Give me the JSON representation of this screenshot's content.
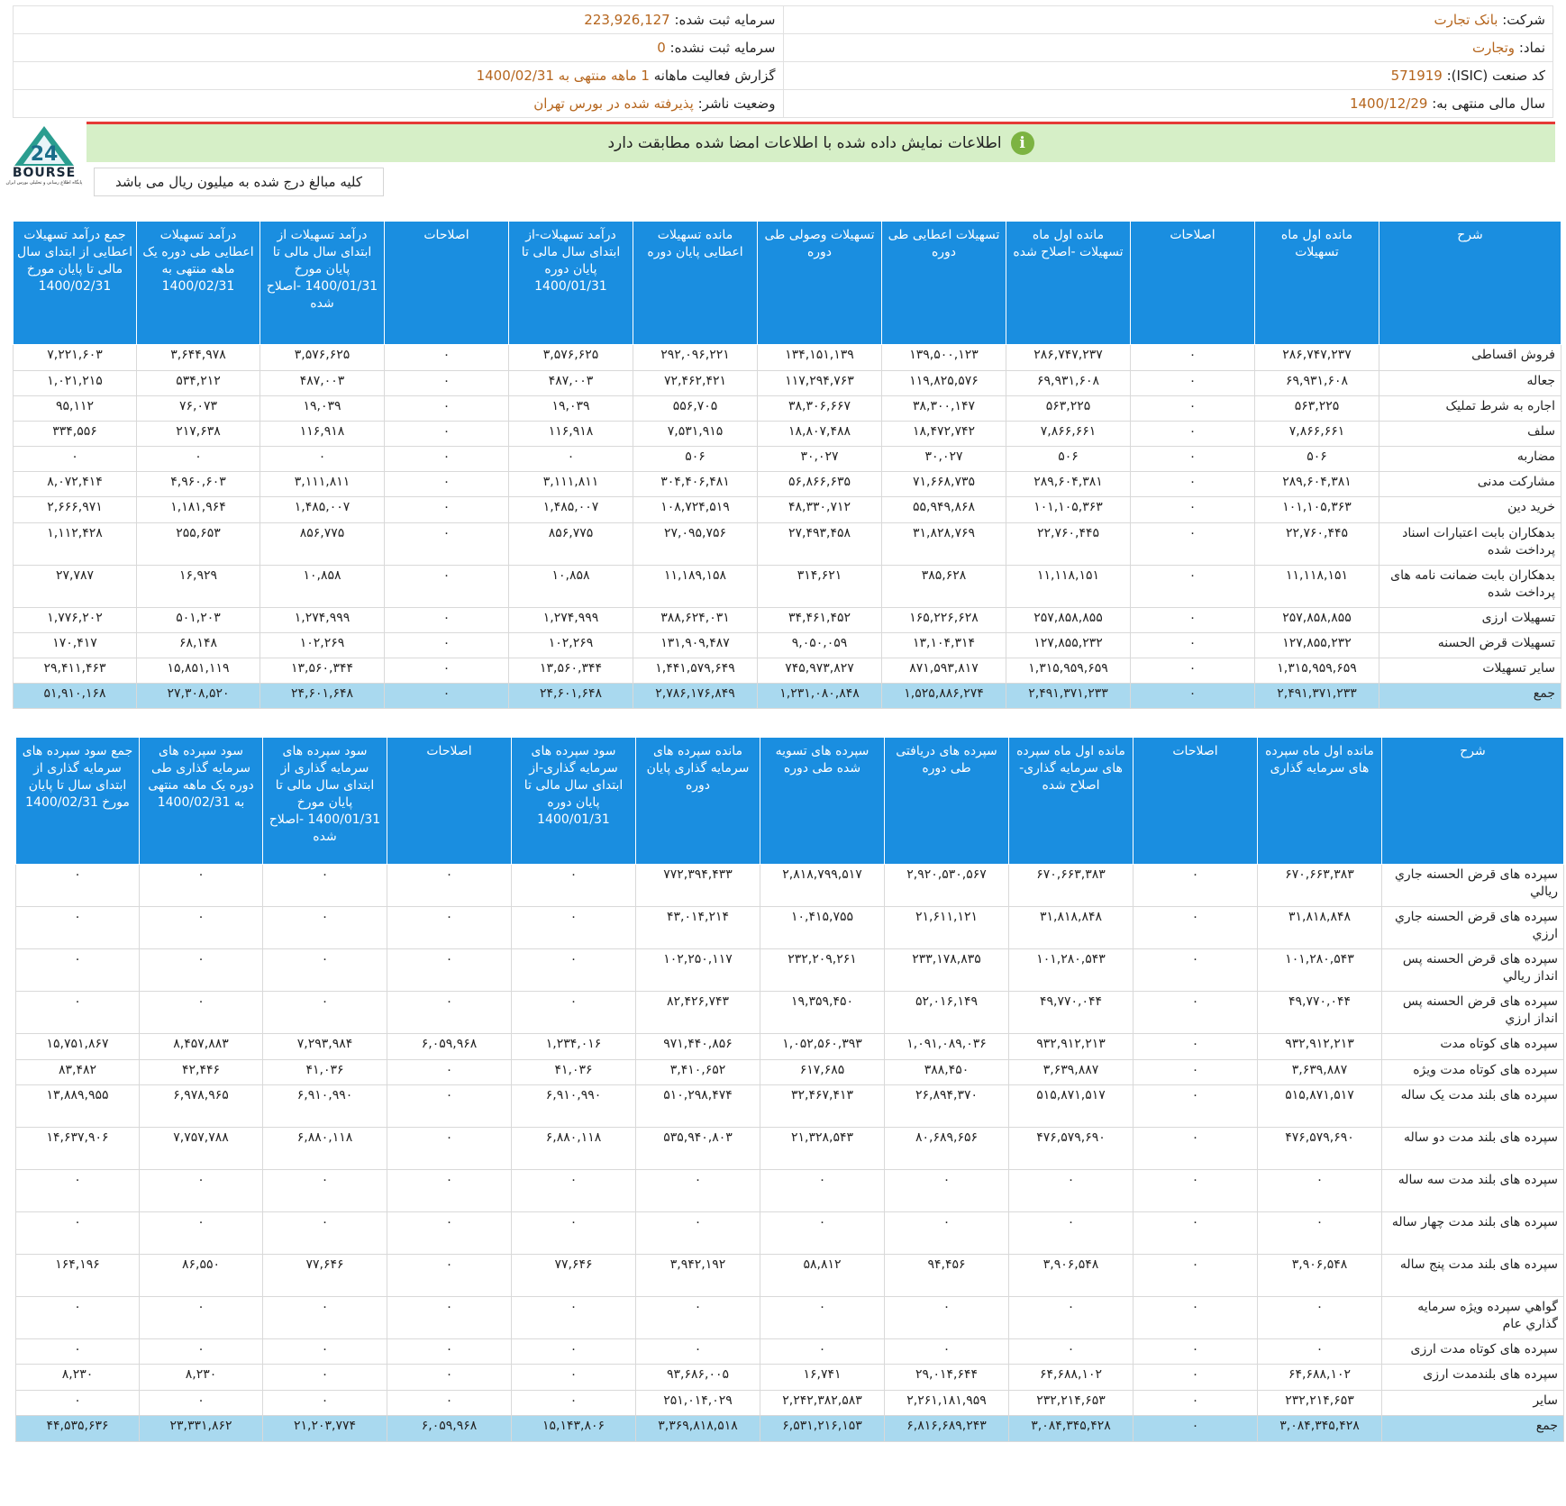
{
  "header": {
    "company_label": "شرکت:",
    "company": "بانک تجارت",
    "capital_label": "سرمایه ثبت شده:",
    "capital": "223,926,127",
    "symbol_label": "نماد:",
    "symbol": "وتجارت",
    "unreg_label": "سرمایه ثبت نشده:",
    "unreg": "0",
    "isic_label": "کد صنعت (ISIC):",
    "isic": "571919",
    "report_label": "گزارش فعالیت ماهانه",
    "report_value": "1 ماهه منتهی به 1400/02/31",
    "fy_label": "سال مالی منتهی به:",
    "fy": "1400/12/29",
    "status_label": "وضعیت ناشر:",
    "status": "پذیرفته شده در بورس تهران"
  },
  "banner": {
    "text": "اطلاعات نمایش داده شده با اطلاعات امضا شده مطابقت دارد",
    "icon": "info-icon"
  },
  "logo": {
    "text": "BOURSE",
    "sub": "پایگاه اطلاع رسانی و تحلیلی بورس ایران"
  },
  "note": "کلیه مبالغ درج شده به میلیون ریال می باشد",
  "loans": {
    "headers": [
      "شرح",
      "مانده اول ماه تسهیلات",
      "اصلاحات",
      "مانده اول ماه تسهیلات -اصلاح شده",
      "تسهیلات اعطایی طی دوره",
      "تسهیلات وصولی طی دوره",
      "مانده تسهیلات اعطایی پایان دوره",
      "درآمد تسهیلات-از ابتدای سال مالی تا پایان دوره 1400/01/31",
      "اصلاحات",
      "درآمد تسهیلات از ابتدای سال مالی تا پایان مورخ 1400/01/31 -اصلاح شده",
      "درآمد تسهیلات اعطایی طی دوره یک ماهه منتهی به 1400/02/31",
      "جمع درآمد تسهیلات اعطایی از ابتدای سال مالی تا پایان مورخ 1400/02/31"
    ],
    "rows": [
      [
        "فروش اقساطی",
        "۲۸۶,۷۴۷,۲۳۷",
        "۰",
        "۲۸۶,۷۴۷,۲۳۷",
        "۱۳۹,۵۰۰,۱۲۳",
        "۱۳۴,۱۵۱,۱۳۹",
        "۲۹۲,۰۹۶,۲۲۱",
        "۳,۵۷۶,۶۲۵",
        "۰",
        "۳,۵۷۶,۶۲۵",
        "۳,۶۴۴,۹۷۸",
        "۷,۲۲۱,۶۰۳"
      ],
      [
        "جعاله",
        "۶۹,۹۳۱,۶۰۸",
        "۰",
        "۶۹,۹۳۱,۶۰۸",
        "۱۱۹,۸۲۵,۵۷۶",
        "۱۱۷,۲۹۴,۷۶۳",
        "۷۲,۴۶۲,۴۲۱",
        "۴۸۷,۰۰۳",
        "۰",
        "۴۸۷,۰۰۳",
        "۵۳۴,۲۱۲",
        "۱,۰۲۱,۲۱۵"
      ],
      [
        "اجاره به شرط تملیک",
        "۵۶۳,۲۲۵",
        "۰",
        "۵۶۳,۲۲۵",
        "۳۸,۳۰۰,۱۴۷",
        "۳۸,۳۰۶,۶۶۷",
        "۵۵۶,۷۰۵",
        "۱۹,۰۳۹",
        "۰",
        "۱۹,۰۳۹",
        "۷۶,۰۷۳",
        "۹۵,۱۱۲"
      ],
      [
        "سلف",
        "۷,۸۶۶,۶۶۱",
        "۰",
        "۷,۸۶۶,۶۶۱",
        "۱۸,۴۷۲,۷۴۲",
        "۱۸,۸۰۷,۴۸۸",
        "۷,۵۳۱,۹۱۵",
        "۱۱۶,۹۱۸",
        "۰",
        "۱۱۶,۹۱۸",
        "۲۱۷,۶۳۸",
        "۳۳۴,۵۵۶"
      ],
      [
        "مضاربه",
        "۵۰۶",
        "۰",
        "۵۰۶",
        "۳۰,۰۲۷",
        "۳۰,۰۲۷",
        "۵۰۶",
        "۰",
        "۰",
        "۰",
        "۰",
        "۰"
      ],
      [
        "مشارکت مدنی",
        "۲۸۹,۶۰۴,۳۸۱",
        "۰",
        "۲۸۹,۶۰۴,۳۸۱",
        "۷۱,۶۶۸,۷۳۵",
        "۵۶,۸۶۶,۶۳۵",
        "۳۰۴,۴۰۶,۴۸۱",
        "۳,۱۱۱,۸۱۱",
        "۰",
        "۳,۱۱۱,۸۱۱",
        "۴,۹۶۰,۶۰۳",
        "۸,۰۷۲,۴۱۴"
      ],
      [
        "خرید دین",
        "۱۰۱,۱۰۵,۳۶۳",
        "۰",
        "۱۰۱,۱۰۵,۳۶۳",
        "۵۵,۹۴۹,۸۶۸",
        "۴۸,۳۳۰,۷۱۲",
        "۱۰۸,۷۲۴,۵۱۹",
        "۱,۴۸۵,۰۰۷",
        "۰",
        "۱,۴۸۵,۰۰۷",
        "۱,۱۸۱,۹۶۴",
        "۲,۶۶۶,۹۷۱"
      ],
      [
        "بدهکاران بابت اعتبارات اسناد پرداخت شده",
        "۲۲,۷۶۰,۴۴۵",
        "۰",
        "۲۲,۷۶۰,۴۴۵",
        "۳۱,۸۲۸,۷۶۹",
        "۲۷,۴۹۳,۴۵۸",
        "۲۷,۰۹۵,۷۵۶",
        "۸۵۶,۷۷۵",
        "۰",
        "۸۵۶,۷۷۵",
        "۲۵۵,۶۵۳",
        "۱,۱۱۲,۴۲۸"
      ],
      [
        "بدهکاران بابت ضمانت نامه های پرداخت شده",
        "۱۱,۱۱۸,۱۵۱",
        "۰",
        "۱۱,۱۱۸,۱۵۱",
        "۳۸۵,۶۲۸",
        "۳۱۴,۶۲۱",
        "۱۱,۱۸۹,۱۵۸",
        "۱۰,۸۵۸",
        "۰",
        "۱۰,۸۵۸",
        "۱۶,۹۲۹",
        "۲۷,۷۸۷"
      ],
      [
        "تسهیلات ارزی",
        "۲۵۷,۸۵۸,۸۵۵",
        "۰",
        "۲۵۷,۸۵۸,۸۵۵",
        "۱۶۵,۲۲۶,۶۲۸",
        "۳۴,۴۶۱,۴۵۲",
        "۳۸۸,۶۲۴,۰۳۱",
        "۱,۲۷۴,۹۹۹",
        "۰",
        "۱,۲۷۴,۹۹۹",
        "۵۰۱,۲۰۳",
        "۱,۷۷۶,۲۰۲"
      ],
      [
        "تسهیلات قرض الحسنه",
        "۱۲۷,۸۵۵,۲۳۲",
        "۰",
        "۱۲۷,۸۵۵,۲۳۲",
        "۱۳,۱۰۴,۳۱۴",
        "۹,۰۵۰,۰۵۹",
        "۱۳۱,۹۰۹,۴۸۷",
        "۱۰۲,۲۶۹",
        "۰",
        "۱۰۲,۲۶۹",
        "۶۸,۱۴۸",
        "۱۷۰,۴۱۷"
      ],
      [
        "سایر تسهیلات",
        "۱,۳۱۵,۹۵۹,۶۵۹",
        "۰",
        "۱,۳۱۵,۹۵۹,۶۵۹",
        "۸۷۱,۵۹۳,۸۱۷",
        "۷۴۵,۹۷۳,۸۲۷",
        "۱,۴۴۱,۵۷۹,۶۴۹",
        "۱۳,۵۶۰,۳۴۴",
        "۰",
        "۱۳,۵۶۰,۳۴۴",
        "۱۵,۸۵۱,۱۱۹",
        "۲۹,۴۱۱,۴۶۳"
      ]
    ],
    "total": [
      "جمع",
      "۲,۴۹۱,۳۷۱,۲۳۳",
      "۰",
      "۲,۴۹۱,۳۷۱,۲۳۳",
      "۱,۵۲۵,۸۸۶,۲۷۴",
      "۱,۲۳۱,۰۸۰,۸۴۸",
      "۲,۷۸۶,۱۷۶,۸۴۹",
      "۲۴,۶۰۱,۶۴۸",
      "۰",
      "۲۴,۶۰۱,۶۴۸",
      "۲۷,۳۰۸,۵۲۰",
      "۵۱,۹۱۰,۱۶۸"
    ]
  },
  "deposits": {
    "headers": [
      "شرح",
      "مانده اول ماه سپرده های سرمایه گذاری",
      "اصلاحات",
      "مانده اول ماه سپرده های سرمایه گذاری- اصلاح شده",
      "سپرده های دریافتی طی دوره",
      "سپرده های تسویه شده طی دوره",
      "مانده سپرده های سرمایه گذاری پایان دوره",
      "سود سپرده های سرمایه گذاری-از ابتدای سال مالی تا پایان دوره 1400/01/31",
      "اصلاحات",
      "سود سپرده های سرمایه گذاری از ابتدای سال مالی تا پایان مورخ 1400/01/31 -اصلاح شده",
      "سود سپرده های سرمایه گذاری طی دوره یک ماهه منتهی به 1400/02/31",
      "جمع سود سپرده های سرمایه گذاری از ابتدای سال تا پایان مورخ 1400/02/31"
    ],
    "rows": [
      [
        "سپرده های قرض الحسنه جاري ريالي",
        "۶۷۰,۶۶۳,۳۸۳",
        "۰",
        "۶۷۰,۶۶۳,۳۸۳",
        "۲,۹۲۰,۵۳۰,۵۶۷",
        "۲,۸۱۸,۷۹۹,۵۱۷",
        "۷۷۲,۳۹۴,۴۳۳",
        "۰",
        "۰",
        "۰",
        "۰",
        "۰"
      ],
      [
        "سپرده های قرض الحسنه جاري ارزي",
        "۳۱,۸۱۸,۸۴۸",
        "۰",
        "۳۱,۸۱۸,۸۴۸",
        "۲۱,۶۱۱,۱۲۱",
        "۱۰,۴۱۵,۷۵۵",
        "۴۳,۰۱۴,۲۱۴",
        "۰",
        "۰",
        "۰",
        "۰",
        "۰"
      ],
      [
        "سپرده های قرض الحسنه پس انداز ريالي",
        "۱۰۱,۲۸۰,۵۴۳",
        "۰",
        "۱۰۱,۲۸۰,۵۴۳",
        "۲۳۳,۱۷۸,۸۳۵",
        "۲۳۲,۲۰۹,۲۶۱",
        "۱۰۲,۲۵۰,۱۱۷",
        "۰",
        "۰",
        "۰",
        "۰",
        "۰"
      ],
      [
        "سپرده های قرض الحسنه پس انداز ارزي",
        "۴۹,۷۷۰,۰۴۴",
        "۰",
        "۴۹,۷۷۰,۰۴۴",
        "۵۲,۰۱۶,۱۴۹",
        "۱۹,۳۵۹,۴۵۰",
        "۸۲,۴۲۶,۷۴۳",
        "۰",
        "۰",
        "۰",
        "۰",
        "۰"
      ],
      [
        "سپرده های کوتاه مدت",
        "۹۳۲,۹۱۲,۲۱۳",
        "۰",
        "۹۳۲,۹۱۲,۲۱۳",
        "۱,۰۹۱,۰۸۹,۰۳۶",
        "۱,۰۵۲,۵۶۰,۳۹۳",
        "۹۷۱,۴۴۰,۸۵۶",
        "۱,۲۳۴,۰۱۶",
        "۶,۰۵۹,۹۶۸",
        "۷,۲۹۳,۹۸۴",
        "۸,۴۵۷,۸۸۳",
        "۱۵,۷۵۱,۸۶۷"
      ],
      [
        "سپرده های کوتاه مدت ویژه",
        "۳,۶۳۹,۸۸۷",
        "۰",
        "۳,۶۳۹,۸۸۷",
        "۳۸۸,۴۵۰",
        "۶۱۷,۶۸۵",
        "۳,۴۱۰,۶۵۲",
        "۴۱,۰۳۶",
        "۰",
        "۴۱,۰۳۶",
        "۴۲,۴۴۶",
        "۸۳,۴۸۲"
      ],
      [
        "سپرده های بلند مدت یک ساله",
        "۵۱۵,۸۷۱,۵۱۷",
        "۰",
        "۵۱۵,۸۷۱,۵۱۷",
        "۲۶,۸۹۴,۳۷۰",
        "۳۲,۴۶۷,۴۱۳",
        "۵۱۰,۲۹۸,۴۷۴",
        "۶,۹۱۰,۹۹۰",
        "۰",
        "۶,۹۱۰,۹۹۰",
        "۶,۹۷۸,۹۶۵",
        "۱۳,۸۸۹,۹۵۵"
      ],
      [
        "سپرده های بلند مدت دو ساله",
        "۴۷۶,۵۷۹,۶۹۰",
        "۰",
        "۴۷۶,۵۷۹,۶۹۰",
        "۸۰,۶۸۹,۶۵۶",
        "۲۱,۳۲۸,۵۴۳",
        "۵۳۵,۹۴۰,۸۰۳",
        "۶,۸۸۰,۱۱۸",
        "۰",
        "۶,۸۸۰,۱۱۸",
        "۷,۷۵۷,۷۸۸",
        "۱۴,۶۳۷,۹۰۶"
      ],
      [
        "سپرده های بلند مدت سه ساله",
        "۰",
        "۰",
        "۰",
        "۰",
        "۰",
        "۰",
        "۰",
        "۰",
        "۰",
        "۰",
        "۰"
      ],
      [
        "سپرده های بلند مدت چهار ساله",
        "۰",
        "۰",
        "۰",
        "۰",
        "۰",
        "۰",
        "۰",
        "۰",
        "۰",
        "۰",
        "۰"
      ],
      [
        "سپرده های بلند مدت پنج ساله",
        "۳,۹۰۶,۵۴۸",
        "۰",
        "۳,۹۰۶,۵۴۸",
        "۹۴,۴۵۶",
        "۵۸,۸۱۲",
        "۳,۹۴۲,۱۹۲",
        "۷۷,۶۴۶",
        "۰",
        "۷۷,۶۴۶",
        "۸۶,۵۵۰",
        "۱۶۴,۱۹۶"
      ],
      [
        "گواهي سپرده ويژه سرمايه گذاري عام",
        "۰",
        "۰",
        "۰",
        "۰",
        "۰",
        "۰",
        "۰",
        "۰",
        "۰",
        "۰",
        "۰"
      ],
      [
        "سپرده های کوتاه مدت ارزی",
        "۰",
        "۰",
        "۰",
        "۰",
        "۰",
        "۰",
        "۰",
        "۰",
        "۰",
        "۰",
        "۰"
      ],
      [
        "سپرده های بلندمدت ارزی",
        "۶۴,۶۸۸,۱۰۲",
        "۰",
        "۶۴,۶۸۸,۱۰۲",
        "۲۹,۰۱۴,۶۴۴",
        "۱۶,۷۴۱",
        "۹۳,۶۸۶,۰۰۵",
        "۰",
        "۰",
        "۰",
        "۸,۲۳۰",
        "۸,۲۳۰"
      ],
      [
        "سایر",
        "۲۳۲,۲۱۴,۶۵۳",
        "۰",
        "۲۳۲,۲۱۴,۶۵۳",
        "۲,۲۶۱,۱۸۱,۹۵۹",
        "۲,۲۴۲,۳۸۲,۵۸۳",
        "۲۵۱,۰۱۴,۰۲۹",
        "۰",
        "۰",
        "۰",
        "۰",
        "۰"
      ]
    ],
    "total": [
      "جمع",
      "۳,۰۸۴,۳۴۵,۴۲۸",
      "۰",
      "۳,۰۸۴,۳۴۵,۴۲۸",
      "۶,۸۱۶,۶۸۹,۲۴۳",
      "۶,۵۳۱,۲۱۶,۱۵۳",
      "۳,۳۶۹,۸۱۸,۵۱۸",
      "۱۵,۱۴۳,۸۰۶",
      "۶,۰۵۹,۹۶۸",
      "۲۱,۲۰۳,۷۷۴",
      "۲۳,۳۳۱,۸۶۲",
      "۴۴,۵۳۵,۶۳۶"
    ]
  }
}
